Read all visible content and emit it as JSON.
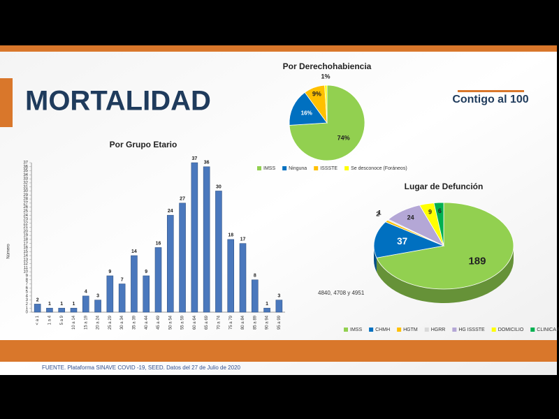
{
  "header": {
    "title": "MORTALIDAD",
    "logo": "Contigo al 100"
  },
  "annotation": "4840, 4708 y 4951",
  "footer": {
    "source": "FUENTE. Plataforma SINAVE COVID -19, SEED. Datos del 27 de Julio de 2020"
  },
  "chart_data": [
    {
      "type": "bar",
      "title": "Por Grupo Etario",
      "y_label": "Número",
      "color": "#4a78bd",
      "categories": [
        "< a 1",
        "1 a 4",
        "5 a 9",
        "10 a 14",
        "15 a 19",
        "20 a 24",
        "25 a 29",
        "30 a 34",
        "35 a 39",
        "40 a 44",
        "45 a 49",
        "50 a 54",
        "55 a 59",
        "60 a 64",
        "65 a 69",
        "70 a 74",
        "75 a 79",
        "80 a 84",
        "85 a 89",
        "90 a 94",
        "95 a 99"
      ],
      "values": [
        2,
        1,
        1,
        1,
        4,
        3,
        9,
        7,
        14,
        9,
        16,
        24,
        27,
        37,
        36,
        30,
        18,
        17,
        8,
        1,
        3
      ],
      "ylim": [
        0,
        37
      ],
      "yticks": [
        0,
        1,
        2,
        3,
        4,
        5,
        6,
        7,
        8,
        9,
        10,
        11,
        12,
        13,
        14,
        15,
        16,
        17,
        18,
        19,
        20,
        21,
        22,
        23,
        24,
        25,
        26,
        27,
        28,
        29,
        30,
        31,
        32,
        33,
        34,
        35,
        36,
        37
      ]
    },
    {
      "type": "pie",
      "title": "Por Derechohabiencia",
      "categories": [
        "IMSS",
        "Ninguna",
        "ISSSTE",
        "Se desconoce (Foráneos)"
      ],
      "values": [
        74,
        16,
        9,
        1
      ],
      "value_labels": [
        "74%",
        "16%",
        "9%",
        "1%"
      ],
      "colors": [
        "#92d050",
        "#0070c0",
        "#ffc000",
        "#ffff00"
      ]
    },
    {
      "type": "pie3d",
      "title": "Lugar de Defunción",
      "categories": [
        "IMSS",
        "CHMH",
        "HGTM",
        "HGRR",
        "HG ISSSTE",
        "DOMICILIO",
        "CLINICA PRIVADA"
      ],
      "values": [
        189,
        37,
        2,
        1,
        24,
        9,
        6
      ],
      "colors": [
        "#92d050",
        "#0070c0",
        "#ffc000",
        "#d9d9d9",
        "#b4a7d6",
        "#ffff00",
        "#00b050"
      ]
    }
  ]
}
